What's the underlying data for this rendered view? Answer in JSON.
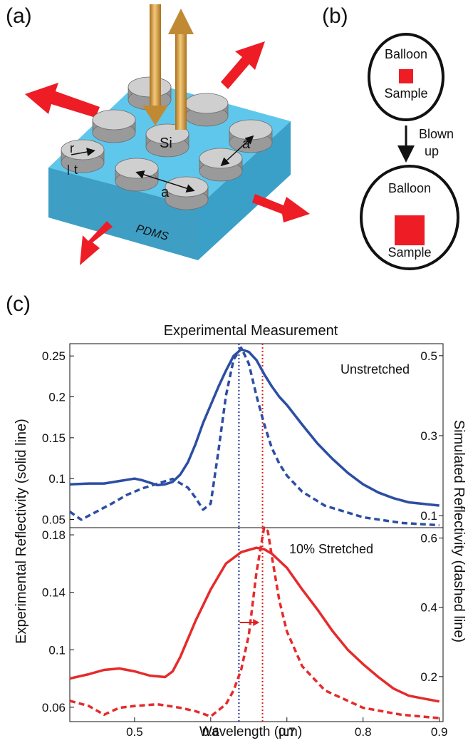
{
  "panels": {
    "a": "(a)",
    "b": "(b)",
    "c": "(c)"
  },
  "schematic": {
    "substrate_label": "PDMS",
    "pillar_label": "Si",
    "radius_label": "r",
    "thickness_label": "t",
    "lattice_label": "a",
    "colors": {
      "substrate_top": "#5fc7ec",
      "substrate_side": "#3aa0c8",
      "pillar": "#c8c8c8",
      "arrow": "#ee1c25",
      "beam": "#c8902e"
    }
  },
  "balloon": {
    "balloon_label": "Balloon",
    "sample_label": "Sample",
    "transition_label_1": "Blown",
    "transition_label_2": "up",
    "sample_color": "#ee1c25"
  },
  "chart_data": [
    {
      "type": "line",
      "title": "Experimental Measurement",
      "annotation": "Unstretched",
      "ylabel": "Experimental Reflectivity (solid line)",
      "y2label": "Simulated Reflectivity (dashed line)",
      "xlim": [
        0.415,
        0.905
      ],
      "ylim": [
        0.04,
        0.265
      ],
      "y2lim": [
        0.07,
        0.53
      ],
      "yticks": [
        "0.05",
        "0.1",
        "0.15",
        "0.2",
        "0.25"
      ],
      "y2ticks": [
        "0.1",
        "0.3",
        "0.5"
      ],
      "vlines": [
        {
          "x": 0.637,
          "color": "#1f2fa0"
        },
        {
          "x": 0.668,
          "color": "#e02020"
        }
      ],
      "color": "#2c4ea3",
      "series": [
        {
          "style": "solid",
          "axis": "left",
          "x": [
            0.415,
            0.44,
            0.46,
            0.48,
            0.5,
            0.51,
            0.52,
            0.53,
            0.54,
            0.55,
            0.56,
            0.57,
            0.58,
            0.59,
            0.6,
            0.61,
            0.62,
            0.63,
            0.64,
            0.65,
            0.66,
            0.67,
            0.68,
            0.69,
            0.7,
            0.72,
            0.74,
            0.76,
            0.78,
            0.8,
            0.82,
            0.84,
            0.86,
            0.88,
            0.9
          ],
          "y": [
            0.093,
            0.094,
            0.094,
            0.097,
            0.1,
            0.098,
            0.095,
            0.092,
            0.093,
            0.096,
            0.105,
            0.12,
            0.142,
            0.168,
            0.19,
            0.212,
            0.232,
            0.25,
            0.258,
            0.255,
            0.245,
            0.228,
            0.213,
            0.2,
            0.19,
            0.166,
            0.143,
            0.124,
            0.107,
            0.093,
            0.083,
            0.076,
            0.071,
            0.069,
            0.067
          ]
        },
        {
          "style": "dashed",
          "axis": "right",
          "x": [
            0.415,
            0.43,
            0.45,
            0.47,
            0.49,
            0.51,
            0.53,
            0.55,
            0.57,
            0.58,
            0.59,
            0.6,
            0.61,
            0.62,
            0.63,
            0.64,
            0.65,
            0.66,
            0.67,
            0.68,
            0.69,
            0.7,
            0.72,
            0.75,
            0.8,
            0.85,
            0.9
          ],
          "y": [
            0.11,
            0.09,
            0.11,
            0.13,
            0.152,
            0.168,
            0.18,
            0.192,
            0.17,
            0.145,
            0.115,
            0.13,
            0.26,
            0.4,
            0.49,
            0.52,
            0.48,
            0.4,
            0.33,
            0.27,
            0.23,
            0.2,
            0.16,
            0.125,
            0.096,
            0.082,
            0.076
          ]
        }
      ]
    },
    {
      "type": "line",
      "annotation": "10% Stretched",
      "xlabel": "Wavelength (µm)",
      "xlim": [
        0.415,
        0.905
      ],
      "ylim": [
        0.05,
        0.185
      ],
      "y2lim": [
        0.07,
        0.63
      ],
      "xticks": [
        "0.5",
        "0.6",
        "0.7",
        "0.8",
        "0.9"
      ],
      "yticks": [
        "0.06",
        "0.1",
        "0.14",
        "0.18"
      ],
      "y2ticks": [
        "0.2",
        "0.4",
        "0.6"
      ],
      "vlines": [
        {
          "x": 0.637,
          "color": "#1f2fa0"
        },
        {
          "x": 0.668,
          "color": "#e02020"
        }
      ],
      "shift_arrow": {
        "from": 0.638,
        "to": 0.664,
        "y": 0.119
      },
      "color": "#e52b2b",
      "series": [
        {
          "style": "solid",
          "axis": "left",
          "x": [
            0.415,
            0.44,
            0.46,
            0.48,
            0.5,
            0.52,
            0.54,
            0.55,
            0.56,
            0.58,
            0.6,
            0.62,
            0.64,
            0.66,
            0.67,
            0.68,
            0.7,
            0.72,
            0.74,
            0.76,
            0.78,
            0.8,
            0.82,
            0.84,
            0.86,
            0.88,
            0.9
          ],
          "y": [
            0.08,
            0.083,
            0.086,
            0.087,
            0.085,
            0.082,
            0.081,
            0.085,
            0.095,
            0.12,
            0.142,
            0.16,
            0.168,
            0.171,
            0.17,
            0.167,
            0.157,
            0.142,
            0.128,
            0.113,
            0.1,
            0.09,
            0.081,
            0.073,
            0.068,
            0.066,
            0.064
          ]
        },
        {
          "style": "dashed",
          "axis": "right",
          "x": [
            0.415,
            0.44,
            0.46,
            0.48,
            0.5,
            0.53,
            0.56,
            0.58,
            0.6,
            0.62,
            0.63,
            0.64,
            0.65,
            0.66,
            0.67,
            0.675,
            0.68,
            0.69,
            0.7,
            0.72,
            0.75,
            0.8,
            0.85,
            0.9
          ],
          "y": [
            0.13,
            0.115,
            0.09,
            0.11,
            0.115,
            0.12,
            0.11,
            0.1,
            0.085,
            0.12,
            0.16,
            0.22,
            0.32,
            0.5,
            0.63,
            0.62,
            0.55,
            0.42,
            0.33,
            0.23,
            0.16,
            0.11,
            0.09,
            0.08
          ]
        }
      ]
    }
  ]
}
